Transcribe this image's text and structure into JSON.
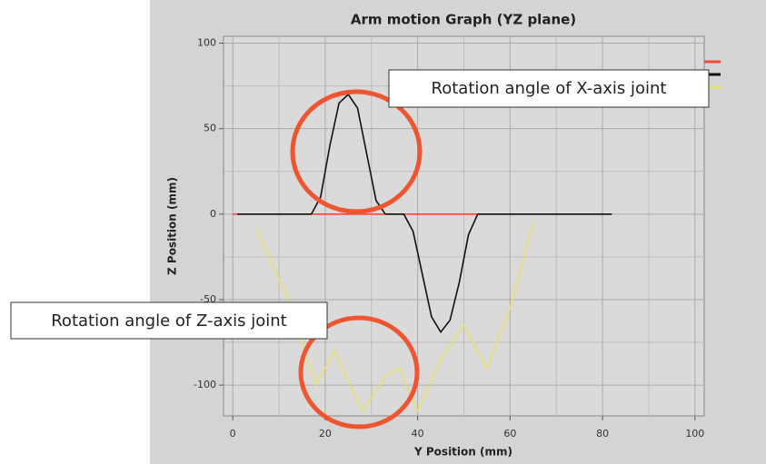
{
  "chart_data": {
    "type": "line",
    "title": "Arm motion Graph (YZ plane)",
    "xlabel": "Y Position (mm)",
    "ylabel": "Z Position (mm)",
    "xlim": [
      -2,
      102
    ],
    "ylim": [
      -118,
      104
    ],
    "xticks": [
      0,
      20,
      40,
      60,
      80,
      100
    ],
    "yticks": [
      100,
      50,
      0,
      -50,
      -100
    ],
    "grid": true,
    "minor_grid": true,
    "legend": "upper right",
    "series": [
      {
        "color": "#f04a3a",
        "x": [
          0,
          82
        ],
        "values": [
          0,
          0
        ]
      },
      {
        "color": "#111111",
        "x": [
          1,
          17,
          19,
          21,
          23,
          25,
          27,
          29,
          31,
          33,
          37,
          39,
          41,
          43,
          45,
          47,
          49,
          51,
          53,
          82
        ],
        "values": [
          0,
          0,
          10,
          40,
          65,
          70,
          62,
          35,
          8,
          0,
          0,
          -10,
          -35,
          -60,
          -69,
          -62,
          -40,
          -12,
          0,
          0
        ]
      },
      {
        "color": "#e8e070",
        "x": [
          5,
          12,
          18,
          22,
          28,
          33,
          36,
          40,
          45,
          50,
          55,
          60,
          65
        ],
        "values": [
          -8,
          -50,
          -100,
          -80,
          -115,
          -95,
          -90,
          -115,
          -85,
          -65,
          -90,
          -55,
          -5
        ]
      }
    ],
    "annotations": [
      "Rotation angle of X-axis joint",
      "Rotation angle of Z-axis joint"
    ]
  }
}
